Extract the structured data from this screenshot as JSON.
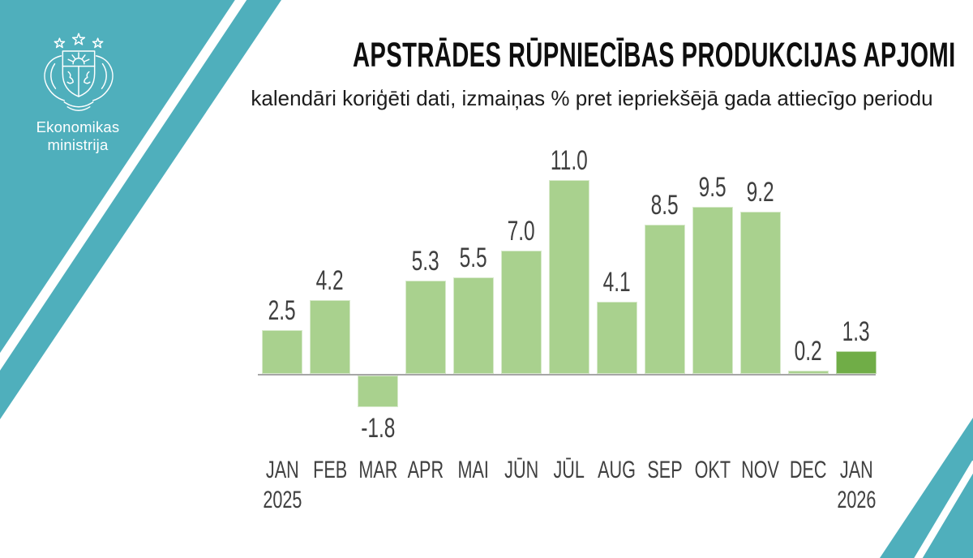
{
  "brand": {
    "ministry_name": "Ekonomikas ministrija",
    "logo_icon": "latvia-coat-of-arms",
    "teal": "#4fafbc",
    "stripe_color": "#ffffff"
  },
  "header": {
    "title": "APSTRĀDES RŪPNIECĪBAS PRODUKCIJAS APJOMI",
    "subtitle": "kalendāri koriģēti dati, izmaiņas % pret iepriekšējā gada attiecīgo periodu"
  },
  "chart_data": {
    "type": "bar",
    "categories": [
      "JAN",
      "FEB",
      "MAR",
      "APR",
      "MAI",
      "JŪN",
      "JŪL",
      "AUG",
      "SEP",
      "OKT",
      "NOV",
      "DEC",
      "JAN"
    ],
    "values": [
      2.5,
      4.2,
      -1.8,
      5.3,
      5.5,
      7.0,
      11.0,
      4.1,
      8.5,
      9.5,
      9.2,
      0.2,
      1.3
    ],
    "value_labels": [
      "2.5",
      "4.2",
      "-1.8",
      "5.3",
      "5.5",
      "7.0",
      "11.0",
      "4.1",
      "8.5",
      "9.5",
      "9.2",
      "0.2",
      "1.3"
    ],
    "year_labels": [
      {
        "index": 0,
        "label": "2025"
      },
      {
        "index": 12,
        "label": "2026"
      }
    ],
    "title": "",
    "xlabel": "",
    "ylabel": "",
    "ylim": [
      -2.5,
      12
    ],
    "grid": false,
    "legend": null,
    "bar_color": "#a9d18e",
    "highlight_color": "#70ad47",
    "highlight_index": 12,
    "axis_color": "#a6a6a6",
    "label_color": "#3f3f3f"
  }
}
